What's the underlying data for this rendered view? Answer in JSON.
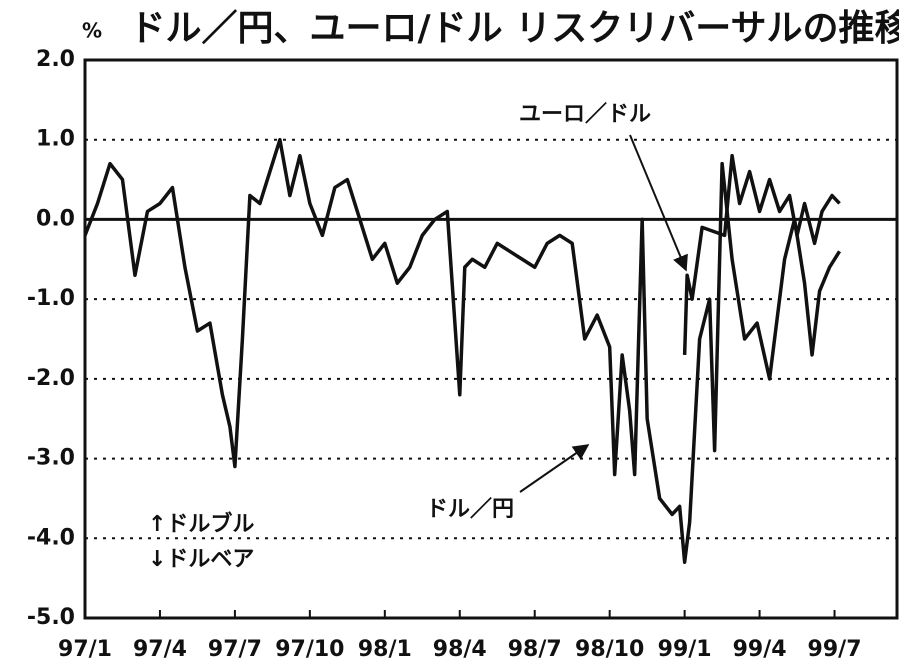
{
  "chart_data": {
    "type": "line",
    "title": "ドル／円、ユーロ/ドル リスクリバーサルの推移",
    "y_label": "%",
    "xlim": [
      0,
      32.5
    ],
    "xticks": [
      {
        "value": 0,
        "label": "97/1"
      },
      {
        "value": 3,
        "label": "97/4"
      },
      {
        "value": 6,
        "label": "97/7"
      },
      {
        "value": 9,
        "label": "97/10"
      },
      {
        "value": 12,
        "label": "98/1"
      },
      {
        "value": 15,
        "label": "98/4"
      },
      {
        "value": 18,
        "label": "98/7"
      },
      {
        "value": 21,
        "label": "98/10"
      },
      {
        "value": 24,
        "label": "99/1"
      },
      {
        "value": 27,
        "label": "99/4"
      },
      {
        "value": 30,
        "label": "99/7"
      }
    ],
    "ylim": [
      -5,
      2
    ],
    "yticks": [
      {
        "value": 2,
        "label": "2.0"
      },
      {
        "value": 1,
        "label": "1.0"
      },
      {
        "value": 0,
        "label": "0.0"
      },
      {
        "value": -1,
        "label": "-1.0"
      },
      {
        "value": -2,
        "label": "-2.0"
      },
      {
        "value": -3,
        "label": "-3.0"
      },
      {
        "value": -4,
        "label": "-4.0"
      },
      {
        "value": -5,
        "label": "-5.0"
      }
    ],
    "grid": true,
    "series": [
      {
        "name": "ドル／円",
        "color": "#111111",
        "x": [
          0,
          0.5,
          1,
          1.5,
          2,
          2.5,
          3,
          3.5,
          4,
          4.5,
          5,
          5.5,
          5.8,
          6,
          6.3,
          6.6,
          7,
          7.3,
          7.8,
          8.2,
          8.6,
          9,
          9.5,
          10,
          10.5,
          11,
          11.5,
          12,
          12.5,
          13,
          13.5,
          14,
          14.5,
          15,
          15.2,
          15.5,
          16,
          16.5,
          17,
          17.5,
          18,
          18.5,
          19,
          19.5,
          20,
          20.5,
          21,
          21.2,
          21.5,
          21.8,
          22,
          22.3,
          22.5,
          23,
          23.5,
          23.8,
          24,
          24.2,
          24.6,
          25,
          25.2,
          25.5,
          25.9,
          26.4,
          26.9,
          27.4,
          28,
          28.4,
          28.8,
          29.1,
          29.4,
          29.8,
          30.2
        ],
        "values": [
          -0.2,
          0.2,
          0.7,
          0.5,
          -0.7,
          0.1,
          0.2,
          0.4,
          -0.6,
          -1.4,
          -1.3,
          -2.2,
          -2.6,
          -3.1,
          -1.5,
          0.3,
          0.2,
          0.5,
          1.0,
          0.3,
          0.8,
          0.2,
          -0.2,
          0.4,
          0.5,
          0.0,
          -0.5,
          -0.3,
          -0.8,
          -0.6,
          -0.2,
          0.0,
          0.1,
          -2.2,
          -0.6,
          -0.5,
          -0.6,
          -0.3,
          -0.4,
          -0.5,
          -0.6,
          -0.3,
          -0.2,
          -0.3,
          -1.5,
          -1.2,
          -1.6,
          -3.2,
          -1.7,
          -2.4,
          -3.2,
          0.0,
          -2.5,
          -3.5,
          -3.7,
          -3.6,
          -4.3,
          -3.8,
          -1.5,
          -1.0,
          -2.9,
          0.7,
          -0.5,
          -1.5,
          -1.3,
          -2.0,
          -0.5,
          0.0,
          -0.8,
          -1.7,
          -0.9,
          -0.6,
          -0.4
        ]
      },
      {
        "name": "ユーロ／ドル",
        "color": "#111111",
        "x": [
          24.0,
          24.1,
          24.3,
          24.7,
          25.6,
          25.9,
          26.2,
          26.6,
          27,
          27.4,
          27.8,
          28.2,
          28.5,
          28.8,
          29.2,
          29.5,
          29.9,
          30.2
        ],
        "values": [
          -1.7,
          -0.7,
          -1.0,
          -0.1,
          -0.2,
          0.8,
          0.2,
          0.6,
          0.1,
          0.5,
          0.1,
          0.3,
          -0.2,
          0.2,
          -0.3,
          0.1,
          0.3,
          0.2
        ]
      }
    ],
    "annotations": [
      "↑ドルブル",
      "↓ドルベア"
    ]
  }
}
